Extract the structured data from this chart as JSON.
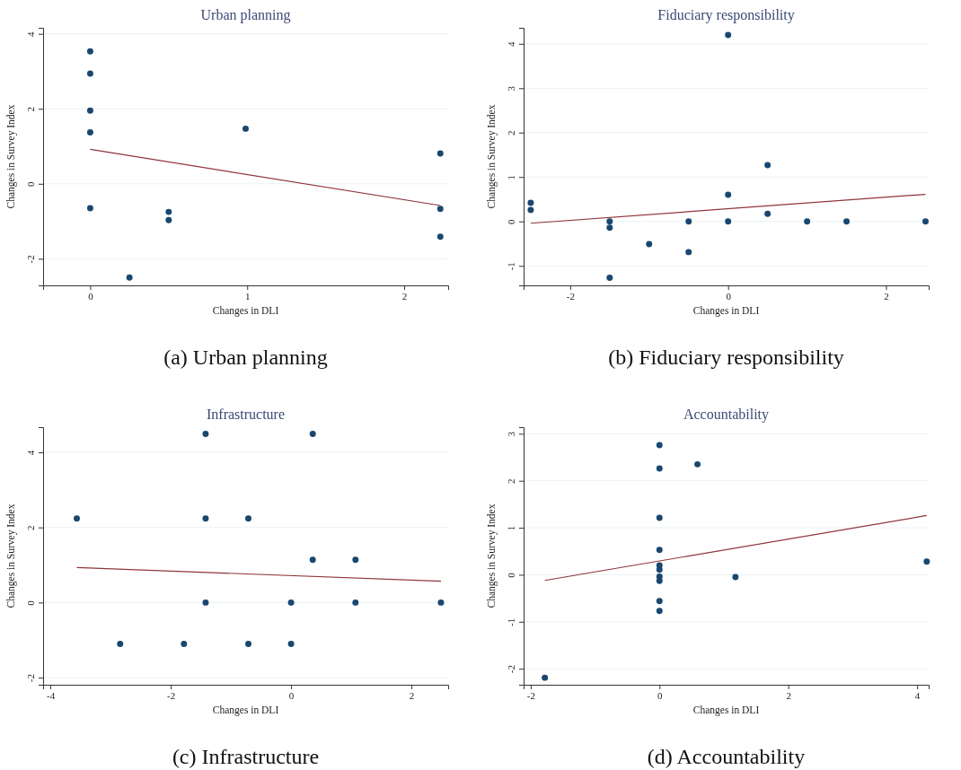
{
  "chart_data": [
    {
      "type": "scatter",
      "title": "Urban planning",
      "xlabel": "Changes in DLI",
      "ylabel": "Changes in Survey Index",
      "annotations": [
        "(a) Urban planning"
      ],
      "xlim": [
        -0.3,
        2.28
      ],
      "ylim": [
        -2.71,
        4.16
      ],
      "xticks": [
        0,
        1,
        2
      ],
      "yticks": [
        -2,
        0,
        2,
        4
      ],
      "grid": "y",
      "series": [
        {
          "type": "scatter",
          "marker": "circle",
          "color": "#1a476f",
          "x": [
            0,
            0,
            0,
            0,
            0,
            0.25,
            0.5,
            0.5,
            0.99,
            2.23,
            2.23,
            2.23
          ],
          "values": [
            3.53,
            2.94,
            1.95,
            1.37,
            -0.65,
            -2.5,
            -0.75,
            -0.97,
            1.47,
            0.81,
            -0.67,
            -1.41
          ]
        },
        {
          "type": "line",
          "color": "#90353b",
          "x": [
            0,
            2.23
          ],
          "values": [
            0.92,
            -0.58
          ]
        }
      ]
    },
    {
      "type": "scatter",
      "title": "Fiduciary responsibility",
      "xlabel": "Changes in DLI",
      "ylabel": "Changes in Survey Index",
      "annotations": [
        "(b) Fiduciary responsibility"
      ],
      "xlim": [
        -2.59,
        2.54
      ],
      "ylim": [
        -1.44,
        4.36
      ],
      "xticks": [
        -2,
        0,
        2
      ],
      "yticks": [
        -1,
        0,
        1,
        2,
        3,
        4
      ],
      "grid": "y",
      "series": [
        {
          "type": "scatter",
          "marker": "circle",
          "color": "#1a476f",
          "x": [
            -2.5,
            -2.5,
            -1.5,
            -1.5,
            -1.5,
            -1,
            -0.5,
            -0.5,
            0,
            0,
            0,
            0.5,
            0.5,
            1,
            1.5,
            2.5
          ],
          "values": [
            0.42,
            0.26,
            0,
            -0.14,
            -1.27,
            -0.51,
            0,
            -0.69,
            4.2,
            0.6,
            0,
            1.27,
            0.17,
            0,
            0,
            0
          ]
        },
        {
          "type": "line",
          "color": "#90353b",
          "x": [
            -2.5,
            2.5
          ],
          "values": [
            -0.04,
            0.61
          ]
        }
      ]
    },
    {
      "type": "scatter",
      "title": "Infrastructure",
      "xlabel": "Changes in DLI",
      "ylabel": "Changes in Survey Index",
      "annotations": [
        "(c) Infrastructure"
      ],
      "xlim": [
        -4.12,
        2.61
      ],
      "ylim": [
        -2.19,
        4.67
      ],
      "xticks": [
        -4,
        -2,
        0,
        2
      ],
      "yticks": [
        -2,
        0,
        2,
        4
      ],
      "grid": "y",
      "series": [
        {
          "type": "scatter",
          "marker": "circle",
          "color": "#1a476f",
          "x": [
            -3.56,
            -2.84,
            -1.78,
            -1.42,
            -1.42,
            -1.42,
            -0.71,
            -0.71,
            0,
            0,
            0.36,
            0.36,
            1.07,
            1.07,
            2.49
          ],
          "values": [
            2.24,
            -1.1,
            -1.1,
            4.49,
            2.24,
            0,
            2.24,
            -1.1,
            0,
            -1.1,
            4.49,
            1.14,
            1.14,
            0,
            0
          ]
        },
        {
          "type": "line",
          "color": "#90353b",
          "x": [
            -3.56,
            2.49
          ],
          "values": [
            0.93,
            0.57
          ]
        }
      ]
    },
    {
      "type": "scatter",
      "title": "Accountability",
      "xlabel": "Changes in DLI",
      "ylabel": "Changes in Survey Index",
      "annotations": [
        "(d) Accountability"
      ],
      "xlim": [
        -2.11,
        4.18
      ],
      "ylim": [
        -2.34,
        3.14
      ],
      "xticks": [
        -2,
        0,
        2,
        4
      ],
      "yticks": [
        -2,
        -1,
        0,
        1,
        2,
        3
      ],
      "grid": "y",
      "series": [
        {
          "type": "scatter",
          "marker": "circle",
          "color": "#1a476f",
          "x": [
            0,
            0,
            0,
            0,
            0,
            0,
            0,
            0,
            0,
            0,
            0.59,
            1.18,
            4.15,
            -1.78
          ],
          "values": [
            2.76,
            2.26,
            1.21,
            0.53,
            0.2,
            0.11,
            -0.04,
            -0.13,
            -0.56,
            -0.77,
            2.35,
            -0.05,
            0.28,
            -2.19
          ]
        },
        {
          "type": "line",
          "color": "#90353b",
          "x": [
            -1.78,
            4.15
          ],
          "values": [
            -0.12,
            1.26
          ]
        }
      ]
    }
  ]
}
